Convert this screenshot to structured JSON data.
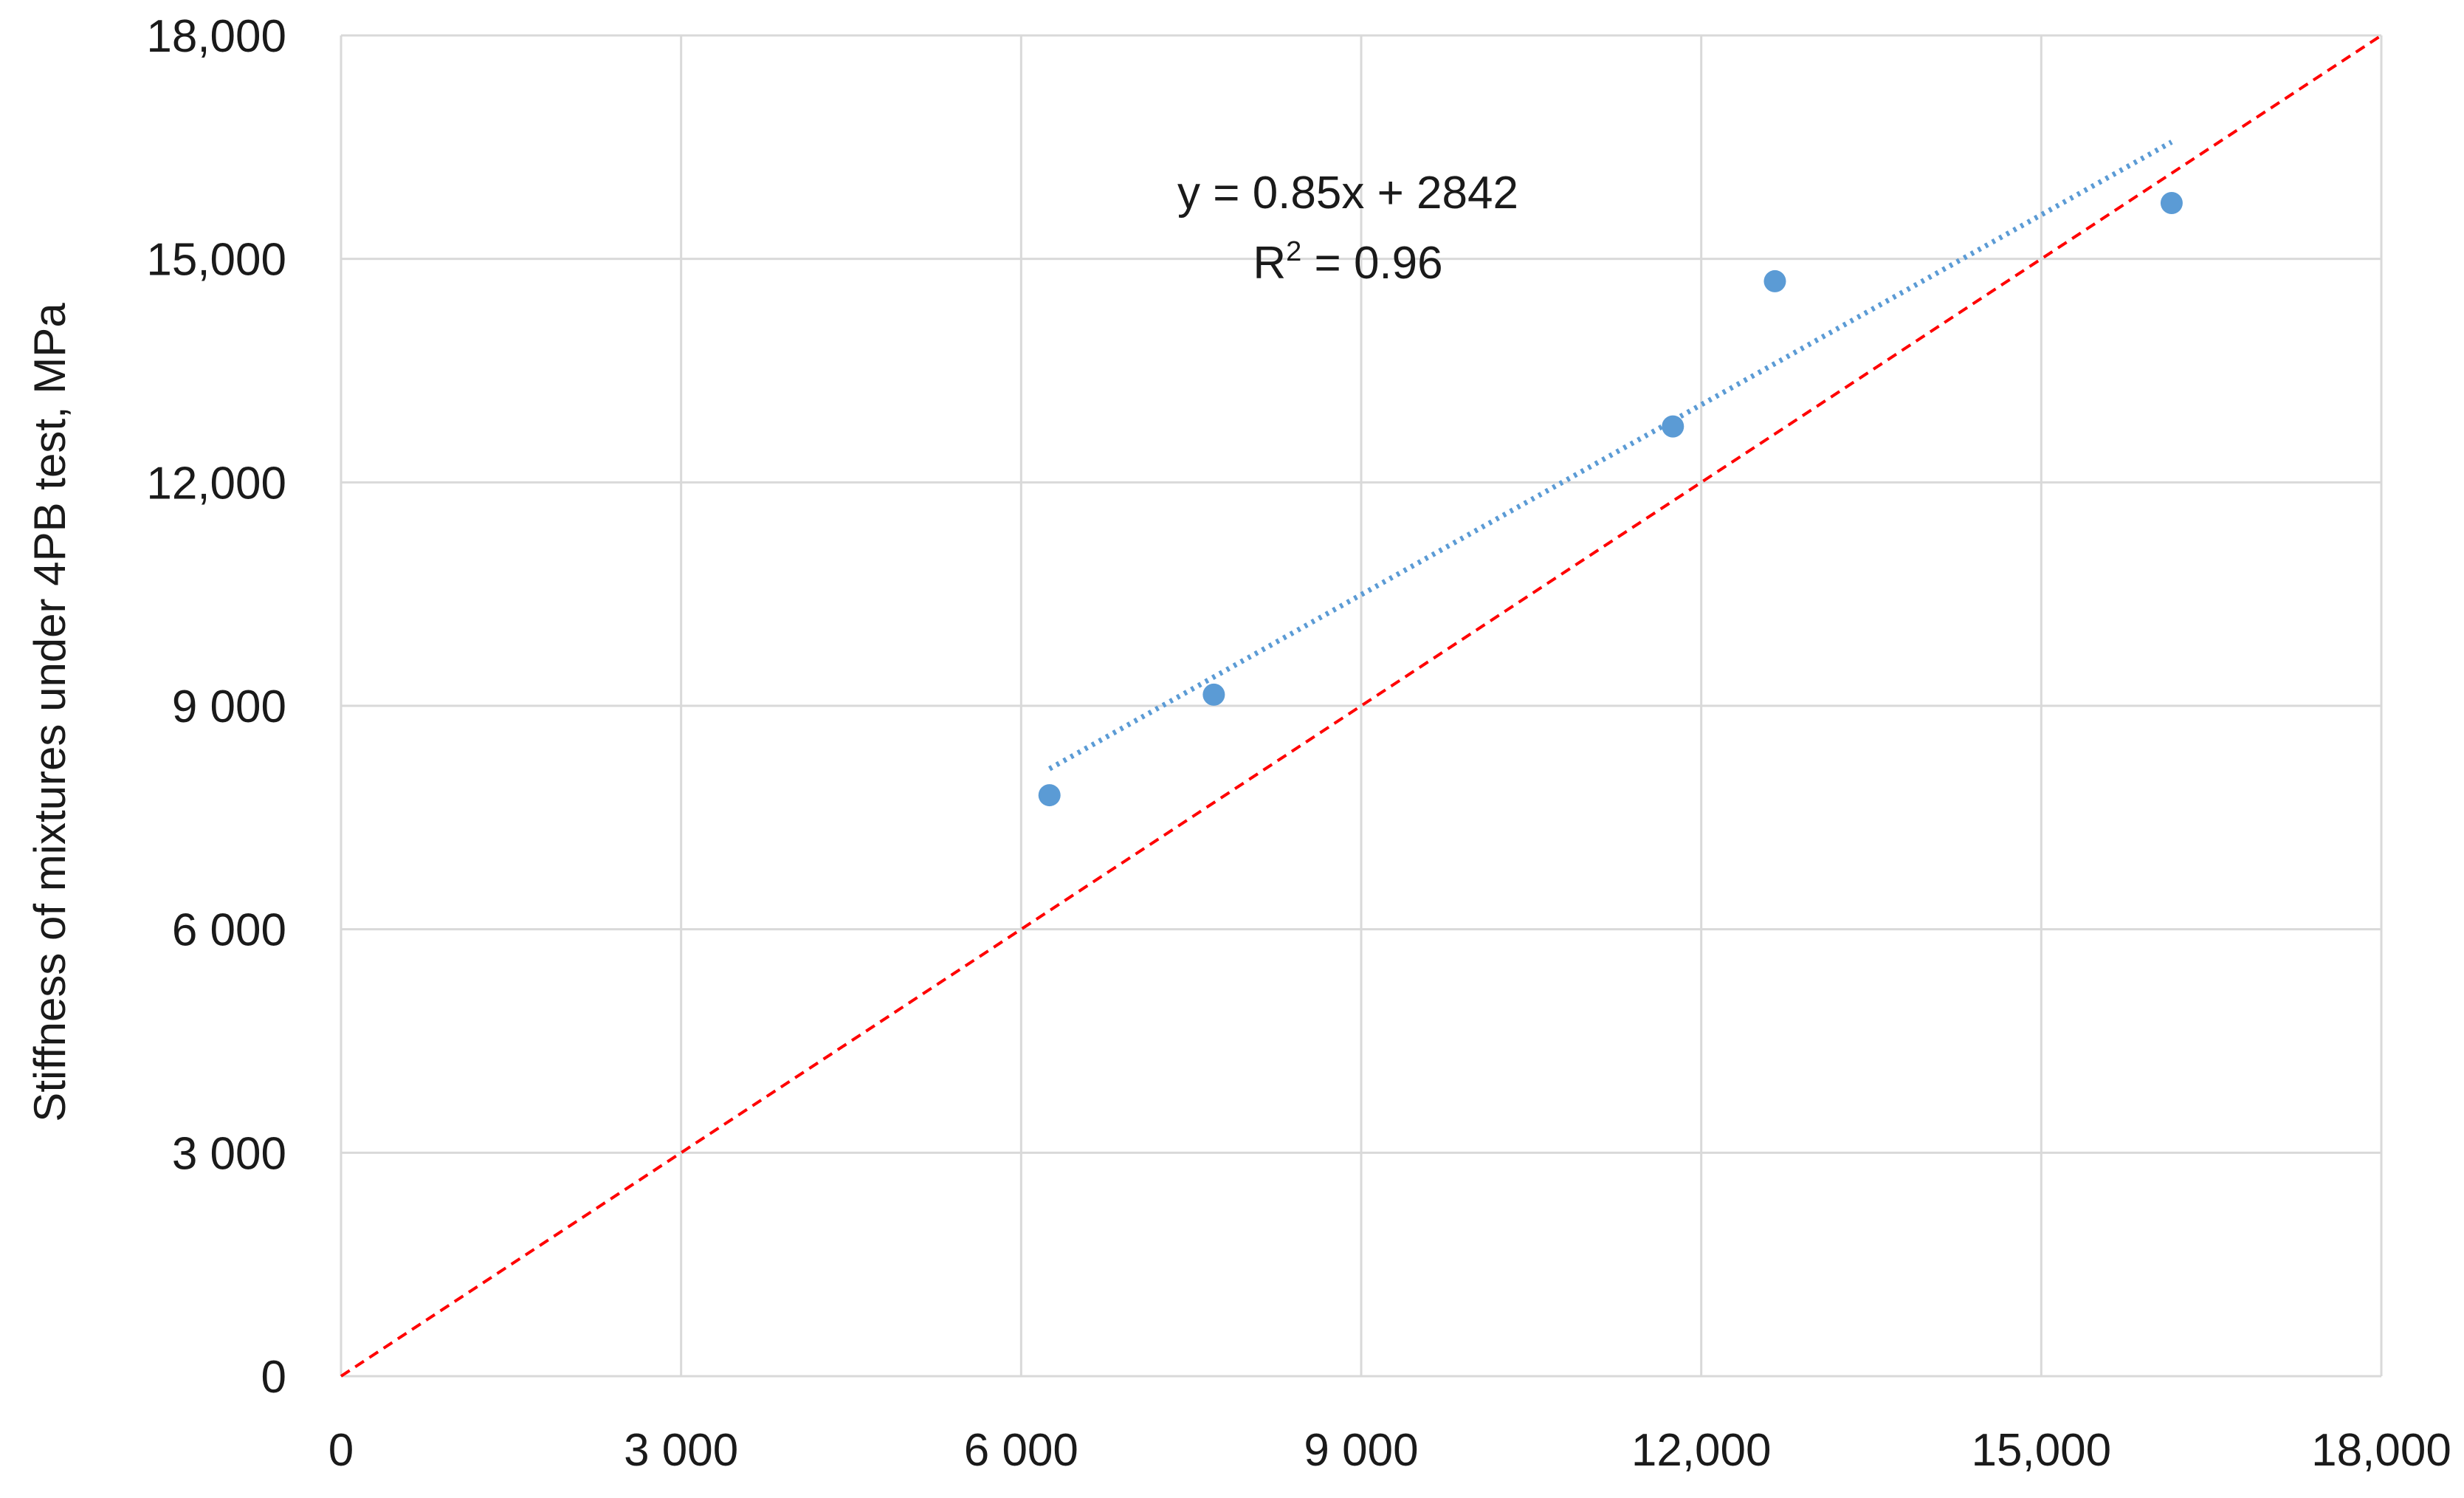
{
  "chart_data": {
    "type": "scatter",
    "ylabel": "Stiffness of mixtures under 4PB test, MPa",
    "xlabel": "",
    "xlim": [
      0,
      18000
    ],
    "ylim": [
      0,
      18000
    ],
    "grid": true,
    "x_tick_values": [
      0,
      3000,
      6000,
      9000,
      12000,
      15000,
      18000
    ],
    "x_tick_labels": [
      "0",
      "3 000",
      "6 000",
      "9 000",
      "12,000",
      "15,000",
      "18,000"
    ],
    "y_tick_values": [
      0,
      3000,
      6000,
      9000,
      12000,
      15000,
      18000
    ],
    "y_tick_labels": [
      "0",
      "3 000",
      "6 000",
      "9 000",
      "12,000",
      "15,000",
      "18,000"
    ],
    "series": [
      {
        "points": [
          {
            "x": 6250,
            "y": 7800
          },
          {
            "x": 7700,
            "y": 9150
          },
          {
            "x": 11750,
            "y": 12750
          },
          {
            "x": 12650,
            "y": 14700
          },
          {
            "x": 16150,
            "y": 15750
          }
        ],
        "color": "#5b9bd5"
      }
    ],
    "trendline": {
      "slope": 0.85,
      "intercept": 2842,
      "x_range": [
        6250,
        16150
      ],
      "color": "#5b9bd5",
      "style": "dotted"
    },
    "reference_line": {
      "from": [
        0,
        0
      ],
      "to": [
        18000,
        18000
      ],
      "color": "#ff0000",
      "style": "dashed"
    },
    "annotation": {
      "equation": "y = 0.85x + 2842",
      "r2_prefix": "R",
      "r2_exponent": "2",
      "r2_suffix": " = 0.96"
    }
  }
}
